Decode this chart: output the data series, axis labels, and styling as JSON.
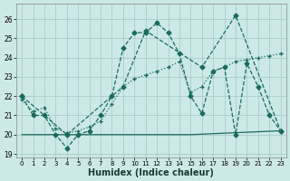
{
  "xlabel": "Humidex (Indice chaleur)",
  "xlim": [
    -0.5,
    23.5
  ],
  "ylim": [
    18.8,
    26.8
  ],
  "yticks": [
    19,
    20,
    21,
    22,
    23,
    24,
    25,
    26
  ],
  "xticks": [
    0,
    1,
    2,
    3,
    4,
    5,
    6,
    7,
    8,
    9,
    10,
    11,
    12,
    13,
    14,
    15,
    16,
    17,
    18,
    19,
    20,
    21,
    22,
    23
  ],
  "bg_color": "#cce9e7",
  "grid_color": "#aaccca",
  "line_color": "#1a6b5e",
  "line1_x": [
    0,
    1,
    2,
    3,
    4,
    5,
    6,
    7,
    8,
    9,
    10,
    11,
    12,
    13,
    14,
    15,
    16,
    17,
    18,
    19,
    20,
    21,
    22,
    23
  ],
  "line1_y": [
    22.0,
    21.0,
    21.0,
    20.0,
    19.3,
    20.0,
    20.2,
    21.0,
    22.0,
    24.5,
    25.3,
    25.3,
    25.8,
    25.3,
    24.2,
    22.0,
    21.1,
    23.3,
    23.5,
    20.0,
    23.7,
    22.5,
    21.0,
    20.2
  ],
  "line2_x": [
    0,
    1,
    2,
    3,
    4,
    5,
    6,
    7,
    8,
    9,
    10,
    11,
    12,
    13,
    14,
    15,
    16,
    17,
    18,
    19,
    20,
    21,
    22,
    23
  ],
  "line2_y": [
    21.8,
    21.2,
    21.4,
    20.3,
    20.1,
    20.2,
    20.4,
    20.7,
    21.6,
    22.5,
    22.9,
    23.1,
    23.3,
    23.5,
    23.8,
    22.2,
    22.5,
    23.3,
    23.5,
    23.8,
    23.9,
    24.0,
    24.1,
    24.2
  ],
  "line3_x": [
    0,
    5,
    10,
    15,
    23
  ],
  "line3_y": [
    20.0,
    20.0,
    20.0,
    20.0,
    20.2
  ],
  "line4_x": [
    0,
    4,
    9,
    11,
    16,
    19,
    23
  ],
  "line4_y": [
    22.0,
    20.0,
    22.5,
    25.4,
    23.5,
    26.2,
    20.2
  ]
}
